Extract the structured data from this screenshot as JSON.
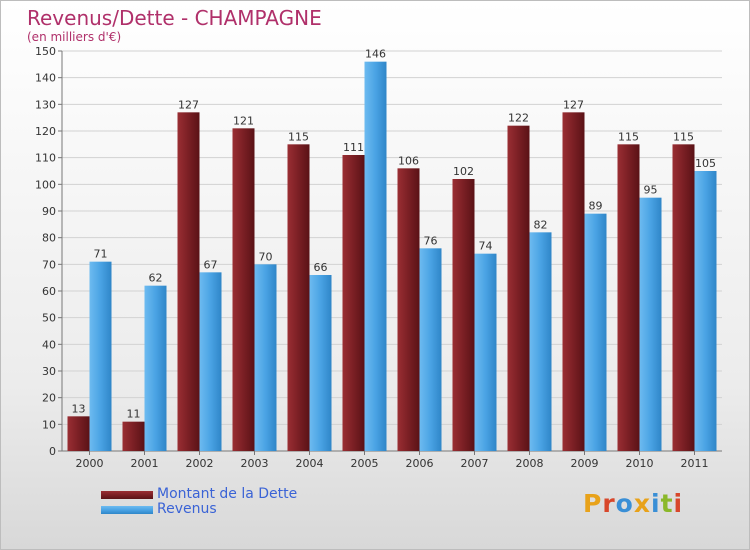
{
  "title": "Revenus/Dette - CHAMPAGNE",
  "subtitle": "(en milliers d'€)",
  "colors": {
    "debt": "#7a1f24",
    "revenue": "#4aa3e4",
    "title": "#b0306a",
    "legend_text": "#3a63d6"
  },
  "legend": {
    "debt_label": "Montant de la Dette",
    "revenue_label": "Revenus"
  },
  "logo": {
    "text": "Proxiti"
  },
  "chart_data": {
    "type": "bar",
    "title": "Revenus/Dette - CHAMPAGNE",
    "subtitle": "(en milliers d'€)",
    "categories": [
      "2000",
      "2001",
      "2002",
      "2003",
      "2004",
      "2005",
      "2006",
      "2007",
      "2008",
      "2009",
      "2010",
      "2011"
    ],
    "series": [
      {
        "name": "Montant de la Dette",
        "values": [
          13,
          11,
          127,
          121,
          115,
          111,
          106,
          102,
          122,
          127,
          115,
          115
        ]
      },
      {
        "name": "Revenus",
        "values": [
          71,
          62,
          67,
          70,
          66,
          146,
          76,
          74,
          82,
          89,
          95,
          105
        ]
      }
    ],
    "ylim": [
      0,
      150
    ],
    "yticks": [
      0,
      10,
      20,
      30,
      40,
      50,
      60,
      70,
      80,
      90,
      100,
      110,
      120,
      130,
      140,
      150
    ],
    "grid": true,
    "legend_position": "bottom-left"
  }
}
